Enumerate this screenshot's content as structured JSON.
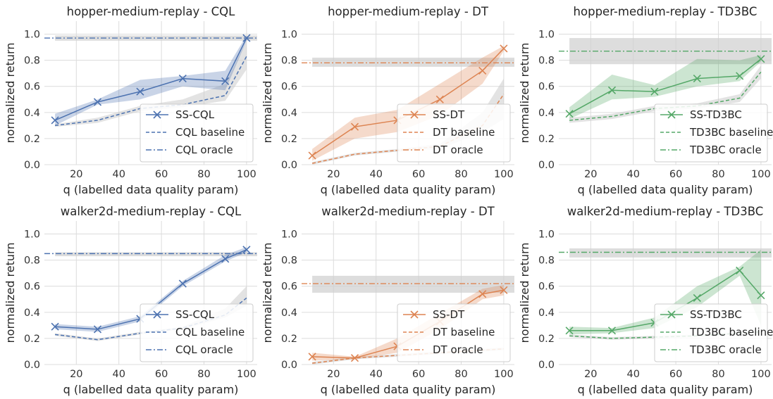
{
  "figure": {
    "colors": {
      "CQL": "#4c72b0",
      "DT": "#dd8452",
      "TD3BC": "#55a868",
      "oracle_band": "#cfcfcf",
      "panel_bg": "#ffffff",
      "grid": "#dcdcdc"
    }
  },
  "chart_data": [
    {
      "type": "line",
      "title": "hopper-medium-replay - CQL",
      "xlabel": "q (labelled data quality param)",
      "ylabel": "normalized return",
      "color_key": "CQL",
      "xlim": [
        5,
        105
      ],
      "ylim": [
        0.0,
        1.1
      ],
      "xticks": [
        20,
        40,
        60,
        80,
        100
      ],
      "yticks": [
        0.0,
        0.2,
        0.4,
        0.6,
        0.8,
        1.0
      ],
      "ytick_labels": [
        "0.0",
        "0.2",
        "0.4",
        "0.6",
        "0.8",
        "1.0"
      ],
      "xtick_labels": [
        "20",
        "40",
        "60",
        "80",
        "100"
      ],
      "legend_loc": "lower-right",
      "series": [
        {
          "name": "SS-CQL",
          "style": "solid-x",
          "x": [
            10,
            30,
            50,
            70,
            90,
            100
          ],
          "y": [
            0.34,
            0.48,
            0.56,
            0.66,
            0.64,
            0.97
          ],
          "lower": [
            0.3,
            0.46,
            0.5,
            0.6,
            0.57,
            0.95
          ],
          "upper": [
            0.39,
            0.5,
            0.65,
            0.68,
            0.72,
            0.99
          ]
        },
        {
          "name": "CQL baseline",
          "style": "dashed",
          "x": [
            10,
            30,
            50,
            70,
            90,
            100
          ],
          "y": [
            0.3,
            0.34,
            0.43,
            0.46,
            0.53,
            0.83
          ],
          "lower": [
            0.29,
            0.32,
            0.41,
            0.44,
            0.49,
            0.73
          ],
          "upper": [
            0.31,
            0.36,
            0.45,
            0.5,
            0.62,
            0.95
          ]
        },
        {
          "name": "CQL oracle",
          "style": "dashdot",
          "value": 0.97,
          "band": [
            0.95,
            0.99
          ]
        }
      ]
    },
    {
      "type": "line",
      "title": "hopper-medium-replay - DT",
      "xlabel": "q (labelled data quality param)",
      "ylabel": "normalized return",
      "color_key": "DT",
      "xlim": [
        5,
        105
      ],
      "ylim": [
        0.0,
        1.1
      ],
      "xticks": [
        20,
        40,
        60,
        80,
        100
      ],
      "yticks": [
        0.0,
        0.2,
        0.4,
        0.6,
        0.8,
        1.0
      ],
      "ytick_labels": [
        "0.0",
        "0.2",
        "0.4",
        "0.6",
        "0.8",
        "1.0"
      ],
      "xtick_labels": [
        "20",
        "40",
        "60",
        "80",
        "100"
      ],
      "legend_loc": "lower-right",
      "series": [
        {
          "name": "SS-DT",
          "style": "solid-x",
          "x": [
            10,
            30,
            50,
            70,
            90,
            100
          ],
          "y": [
            0.07,
            0.29,
            0.34,
            0.5,
            0.72,
            0.89
          ],
          "lower": [
            0.03,
            0.2,
            0.25,
            0.38,
            0.62,
            0.87
          ],
          "upper": [
            0.12,
            0.36,
            0.42,
            0.62,
            0.82,
            0.91
          ]
        },
        {
          "name": "DT baseline",
          "style": "dashed",
          "x": [
            10,
            30,
            50,
            70,
            90,
            100
          ],
          "y": [
            0.01,
            0.08,
            0.11,
            0.14,
            0.3,
            0.54
          ],
          "lower": [
            0.0,
            0.07,
            0.1,
            0.12,
            0.25,
            0.35
          ],
          "upper": [
            0.02,
            0.09,
            0.12,
            0.16,
            0.4,
            0.66
          ]
        },
        {
          "name": "DT oracle",
          "style": "dashdot",
          "value": 0.78,
          "band": [
            0.75,
            0.82
          ]
        }
      ]
    },
    {
      "type": "line",
      "title": "hopper-medium-replay - TD3BC",
      "xlabel": "q (labelled data quality param)",
      "ylabel": "normalized return",
      "color_key": "TD3BC",
      "xlim": [
        5,
        105
      ],
      "ylim": [
        0.0,
        1.1
      ],
      "xticks": [
        20,
        40,
        60,
        80,
        100
      ],
      "yticks": [
        0.0,
        0.2,
        0.4,
        0.6,
        0.8,
        1.0
      ],
      "ytick_labels": [
        "0.0",
        "0.2",
        "0.4",
        "0.6",
        "0.8",
        "1.0"
      ],
      "xtick_labels": [
        "20",
        "40",
        "60",
        "80",
        "100"
      ],
      "legend_loc": "lower-right",
      "series": [
        {
          "name": "SS-TD3BC",
          "style": "solid-x",
          "x": [
            10,
            30,
            50,
            70,
            90,
            100
          ],
          "y": [
            0.39,
            0.57,
            0.56,
            0.66,
            0.68,
            0.81
          ],
          "lower": [
            0.35,
            0.5,
            0.52,
            0.6,
            0.64,
            0.79
          ],
          "upper": [
            0.44,
            0.69,
            0.61,
            0.81,
            0.8,
            0.84
          ]
        },
        {
          "name": "TD3BC baseline",
          "style": "dashed",
          "x": [
            10,
            30,
            50,
            70,
            90,
            100
          ],
          "y": [
            0.34,
            0.37,
            0.43,
            0.45,
            0.51,
            0.71
          ],
          "lower": [
            0.32,
            0.35,
            0.41,
            0.43,
            0.48,
            0.66
          ],
          "upper": [
            0.36,
            0.39,
            0.45,
            0.47,
            0.54,
            0.76
          ]
        },
        {
          "name": "TD3BC oracle",
          "style": "dashdot",
          "value": 0.87,
          "band": [
            0.77,
            0.97
          ]
        }
      ]
    },
    {
      "type": "line",
      "title": "walker2d-medium-replay - CQL",
      "xlabel": "q (labelled data quality param)",
      "ylabel": "normalized return",
      "color_key": "CQL",
      "xlim": [
        5,
        105
      ],
      "ylim": [
        0.0,
        1.1
      ],
      "xticks": [
        20,
        40,
        60,
        80,
        100
      ],
      "yticks": [
        0.0,
        0.2,
        0.4,
        0.6,
        0.8,
        1.0
      ],
      "ytick_labels": [
        "0.0",
        "0.2",
        "0.4",
        "0.6",
        "0.8",
        "1.0"
      ],
      "xtick_labels": [
        "20",
        "40",
        "60",
        "80",
        "100"
      ],
      "legend_loc": "lower-right",
      "series": [
        {
          "name": "SS-CQL",
          "style": "solid-x",
          "x": [
            10,
            30,
            50,
            70,
            90,
            100
          ],
          "y": [
            0.29,
            0.27,
            0.35,
            0.62,
            0.81,
            0.88
          ],
          "lower": [
            0.27,
            0.25,
            0.33,
            0.6,
            0.79,
            0.86
          ],
          "upper": [
            0.31,
            0.29,
            0.37,
            0.64,
            0.84,
            0.9
          ]
        },
        {
          "name": "CQL baseline",
          "style": "dashed",
          "x": [
            10,
            30,
            50,
            70,
            90,
            100
          ],
          "y": [
            0.23,
            0.19,
            0.24,
            0.28,
            0.38,
            0.51
          ],
          "lower": [
            0.22,
            0.18,
            0.23,
            0.27,
            0.36,
            0.45
          ],
          "upper": [
            0.24,
            0.2,
            0.25,
            0.29,
            0.43,
            0.6
          ]
        },
        {
          "name": "CQL oracle",
          "style": "dashdot",
          "value": 0.85,
          "band": [
            0.83,
            0.86
          ]
        }
      ]
    },
    {
      "type": "line",
      "title": "walker2d-medium-replay - DT",
      "xlabel": "q (labelled data quality param)",
      "ylabel": "normalized return",
      "color_key": "DT",
      "xlim": [
        5,
        105
      ],
      "ylim": [
        0.0,
        1.1
      ],
      "xticks": [
        20,
        40,
        60,
        80,
        100
      ],
      "yticks": [
        0.0,
        0.2,
        0.4,
        0.6,
        0.8,
        1.0
      ],
      "ytick_labels": [
        "0.0",
        "0.2",
        "0.4",
        "0.6",
        "0.8",
        "1.0"
      ],
      "xtick_labels": [
        "20",
        "40",
        "60",
        "80",
        "100"
      ],
      "legend_loc": "lower-right",
      "series": [
        {
          "name": "SS-DT",
          "style": "solid-x",
          "x": [
            10,
            30,
            50,
            70,
            90,
            100
          ],
          "y": [
            0.06,
            0.05,
            0.14,
            0.33,
            0.54,
            0.57
          ],
          "lower": [
            0.03,
            0.04,
            0.09,
            0.27,
            0.5,
            0.53
          ],
          "upper": [
            0.09,
            0.06,
            0.2,
            0.39,
            0.58,
            0.61
          ]
        },
        {
          "name": "DT baseline",
          "style": "dashed",
          "x": [
            10,
            30,
            50,
            70,
            90,
            100
          ],
          "y": [
            0.01,
            0.05,
            0.07,
            0.09,
            0.11,
            0.12
          ],
          "lower": [
            0.0,
            0.04,
            0.06,
            0.08,
            0.1,
            0.11
          ],
          "upper": [
            0.02,
            0.06,
            0.08,
            0.1,
            0.12,
            0.13
          ]
        },
        {
          "name": "DT oracle",
          "style": "dashdot",
          "value": 0.62,
          "band": [
            0.55,
            0.68
          ]
        }
      ]
    },
    {
      "type": "line",
      "title": "walker2d-medium-replay - TD3BC",
      "xlabel": "q (labelled data quality param)",
      "ylabel": "normalized return",
      "color_key": "TD3BC",
      "xlim": [
        5,
        105
      ],
      "ylim": [
        0.0,
        1.1
      ],
      "xticks": [
        20,
        40,
        60,
        80,
        100
      ],
      "yticks": [
        0.0,
        0.2,
        0.4,
        0.6,
        0.8,
        1.0
      ],
      "ytick_labels": [
        "0.0",
        "0.2",
        "0.4",
        "0.6",
        "0.8",
        "1.0"
      ],
      "xtick_labels": [
        "20",
        "40",
        "60",
        "80",
        "100"
      ],
      "legend_loc": "lower-right",
      "series": [
        {
          "name": "SS-TD3BC",
          "style": "solid-x",
          "x": [
            10,
            30,
            50,
            70,
            90,
            100
          ],
          "y": [
            0.26,
            0.26,
            0.32,
            0.51,
            0.72,
            0.53
          ],
          "lower": [
            0.23,
            0.24,
            0.28,
            0.44,
            0.68,
            0.3
          ],
          "upper": [
            0.29,
            0.28,
            0.36,
            0.6,
            0.75,
            0.88
          ]
        },
        {
          "name": "TD3BC baseline",
          "style": "dashed",
          "x": [
            10,
            30,
            50,
            70,
            90,
            100
          ],
          "y": [
            0.22,
            0.2,
            0.21,
            0.22,
            0.24,
            0.25
          ],
          "lower": [
            0.21,
            0.19,
            0.2,
            0.21,
            0.23,
            0.24
          ],
          "upper": [
            0.23,
            0.21,
            0.22,
            0.23,
            0.25,
            0.26
          ]
        },
        {
          "name": "TD3BC oracle",
          "style": "dashdot",
          "value": 0.86,
          "band": [
            0.82,
            0.89
          ]
        }
      ]
    }
  ]
}
